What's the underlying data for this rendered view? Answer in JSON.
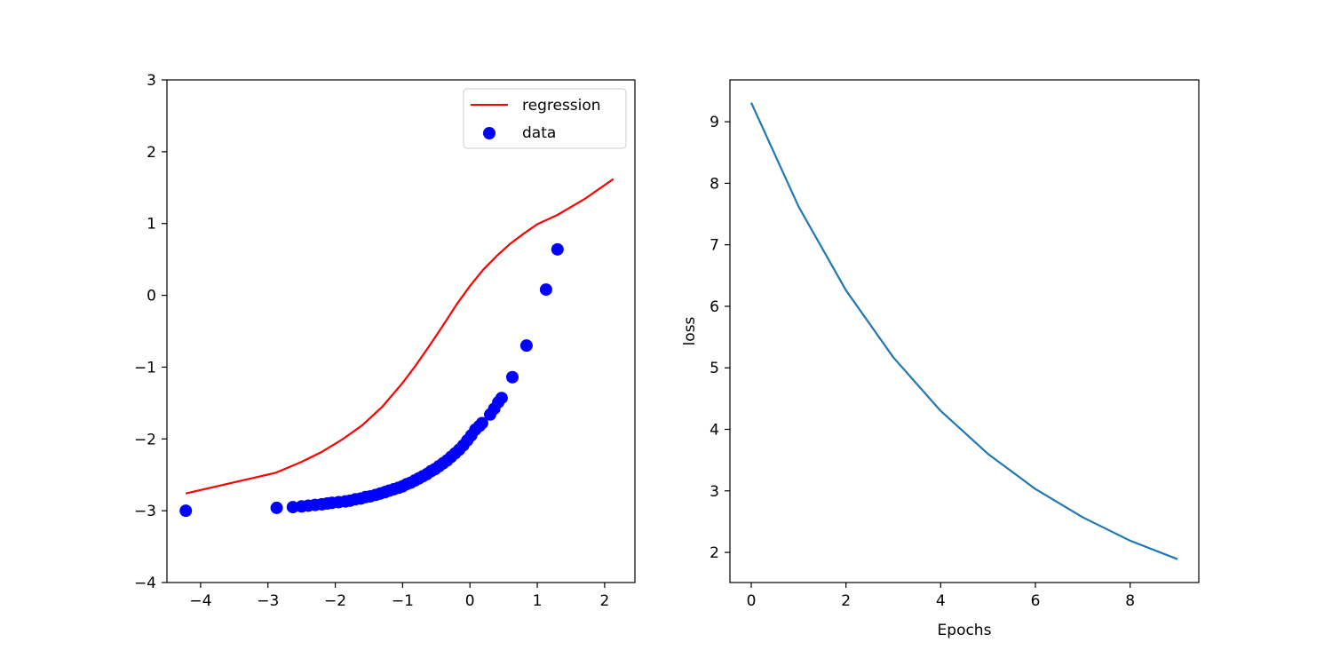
{
  "chart_data": [
    {
      "type": "scatter",
      "title": "",
      "xlabel": "",
      "ylabel": "",
      "xlim": [
        -4.5,
        2.45
      ],
      "ylim": [
        -4,
        3
      ],
      "xticks": [
        -4,
        -3,
        -2,
        -1,
        0,
        1,
        2
      ],
      "yticks": [
        -4,
        -3,
        -2,
        -1,
        0,
        1,
        2,
        3
      ],
      "xtick_labels": [
        "−4",
        "−3",
        "−2",
        "−1",
        "0",
        "1",
        "2"
      ],
      "ytick_labels": [
        "−4",
        "−3",
        "−2",
        "−1",
        "0",
        "1",
        "2",
        "3"
      ],
      "grid": false,
      "legend": {
        "position": "top-right",
        "entries": [
          {
            "label": "regression",
            "kind": "line",
            "color": "#ff0000"
          },
          {
            "label": "data",
            "kind": "marker",
            "color": "#0000ff"
          }
        ]
      },
      "series": [
        {
          "name": "regression",
          "kind": "line",
          "color": "#ff0000",
          "x": [
            -4.22,
            -2.88,
            -2.5,
            -2.2,
            -1.9,
            -1.6,
            -1.3,
            -1.0,
            -0.8,
            -0.6,
            -0.4,
            -0.2,
            0.0,
            0.2,
            0.4,
            0.6,
            0.8,
            1.0,
            1.3,
            1.7,
            2.13
          ],
          "y": [
            -2.76,
            -2.47,
            -2.32,
            -2.18,
            -2.01,
            -1.81,
            -1.55,
            -1.22,
            -0.97,
            -0.7,
            -0.42,
            -0.13,
            0.13,
            0.36,
            0.55,
            0.72,
            0.86,
            0.99,
            1.12,
            1.34,
            1.62
          ]
        },
        {
          "name": "data",
          "kind": "scatter",
          "color": "#0000ff",
          "x": [
            -4.22,
            -2.87,
            -2.63,
            -2.5,
            -2.4,
            -2.3,
            -2.2,
            -2.12,
            -2.05,
            -1.95,
            -1.85,
            -1.78,
            -1.7,
            -1.62,
            -1.55,
            -1.48,
            -1.4,
            -1.33,
            -1.26,
            -1.2,
            -1.13,
            -1.06,
            -1.0,
            -0.94,
            -0.88,
            -0.82,
            -0.76,
            -0.7,
            -0.64,
            -0.58,
            -0.52,
            -0.46,
            -0.4,
            -0.34,
            -0.28,
            -0.22,
            -0.16,
            -0.1,
            -0.04,
            0.02,
            0.08,
            0.14,
            0.18,
            0.3,
            0.36,
            0.42,
            0.47,
            0.63,
            0.84,
            1.13,
            1.3
          ],
          "y": [
            -3.0,
            -2.96,
            -2.95,
            -2.94,
            -2.93,
            -2.92,
            -2.91,
            -2.9,
            -2.89,
            -2.88,
            -2.87,
            -2.86,
            -2.84,
            -2.83,
            -2.81,
            -2.8,
            -2.78,
            -2.76,
            -2.74,
            -2.72,
            -2.7,
            -2.68,
            -2.66,
            -2.63,
            -2.61,
            -2.58,
            -2.55,
            -2.52,
            -2.49,
            -2.45,
            -2.42,
            -2.38,
            -2.34,
            -2.3,
            -2.25,
            -2.2,
            -2.15,
            -2.09,
            -2.02,
            -1.95,
            -1.87,
            -1.82,
            -1.78,
            -1.66,
            -1.58,
            -1.49,
            -1.43,
            -1.14,
            -0.7,
            0.08,
            0.64
          ]
        }
      ]
    },
    {
      "type": "line",
      "title": "",
      "xlabel": "Epochs",
      "ylabel": "loss",
      "xlim": [
        -0.45,
        9.45
      ],
      "ylim": [
        1.51,
        9.68
      ],
      "xticks": [
        0,
        2,
        4,
        6,
        8
      ],
      "yticks": [
        2,
        3,
        4,
        5,
        6,
        7,
        8,
        9
      ],
      "xtick_labels": [
        "0",
        "2",
        "4",
        "6",
        "8"
      ],
      "ytick_labels": [
        "2",
        "3",
        "4",
        "5",
        "6",
        "7",
        "8",
        "9"
      ],
      "grid": false,
      "series": [
        {
          "name": "loss",
          "color": "#1f77b4",
          "x": [
            0,
            1,
            2,
            3,
            4,
            5,
            6,
            7,
            8,
            9
          ],
          "y": [
            9.31,
            7.62,
            6.26,
            5.17,
            4.3,
            3.6,
            3.03,
            2.57,
            2.19,
            1.89
          ]
        }
      ]
    }
  ]
}
